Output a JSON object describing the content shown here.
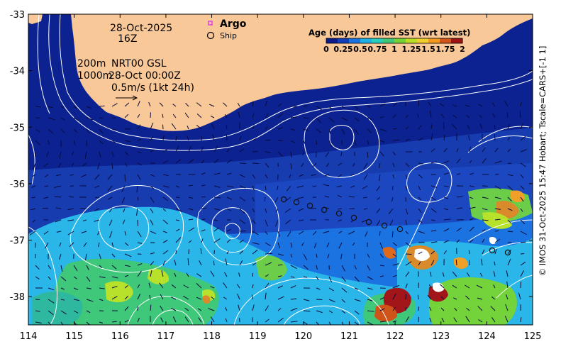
{
  "map": {
    "date_label": "28-Oct-2025",
    "time_label": "16Z",
    "product_label": "NRT00 GSL",
    "contour_label_200": "200m",
    "contour_label_1000": "1000m",
    "product_time_label": "28-Oct 00:00Z",
    "velocity_scale_label": "0.5m/s (1kt 24h)"
  },
  "legend": {
    "argo_label": "Argo",
    "ship_label": "Ship",
    "colorbar_title": "Age (days) of filled SST (wrt latest)",
    "colorbar_ticks": [
      "0",
      "0.25",
      "0.5",
      "0.75",
      "1",
      "1.25",
      "1.5",
      "1.75",
      "2"
    ],
    "colorbar_range": [
      0,
      2
    ],
    "colorbar_colors": [
      "#0b1a8a",
      "#123db8",
      "#1a73e0",
      "#1fb0e8",
      "#27cfc0",
      "#3fc77a",
      "#74d23a",
      "#b9de24",
      "#f0d02a",
      "#f29a20",
      "#d0541a",
      "#9c1414"
    ]
  },
  "axes": {
    "x_ticks": [
      "114",
      "115",
      "116",
      "117",
      "118",
      "119",
      "120",
      "121",
      "122",
      "123",
      "124",
      "125"
    ],
    "y_ticks": [
      "-33",
      "-34",
      "-35",
      "-36",
      "-37",
      "-38"
    ],
    "lon_range": [
      114,
      125
    ],
    "lat_range": [
      -38.5,
      -33
    ]
  },
  "credit": "© IMOS 31-Oct-2025 15:47 Hobart; Tscale=CARS+[-1 1]",
  "colors": {
    "land": "#f9c898",
    "ocean_deep": "#0b2290",
    "ocean_mid": "#163cb0",
    "cyan": "#2ab6e8",
    "teal": "#2fb8a0",
    "green": "#6ccd48",
    "lime": "#b7e12a",
    "orange": "#d98a2a",
    "red": "#a2161a",
    "contour": "#ffffff",
    "argo_marker": "#e040e0"
  }
}
